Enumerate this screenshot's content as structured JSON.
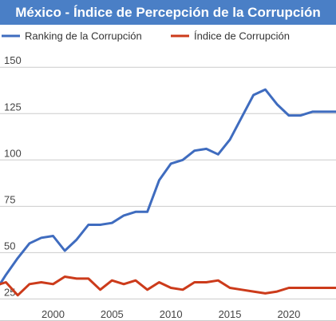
{
  "banner": {
    "title": "México - Índice de Percepción de la Corrupción"
  },
  "chart_data": {
    "type": "line",
    "title": "México - Índice de Percepción de la Corrupción",
    "xlabel": "",
    "ylabel": "",
    "xlim": [
      1995.5,
      2024
    ],
    "ylim": [
      20,
      160
    ],
    "x_ticks": [
      2000,
      2005,
      2010,
      2015,
      2020
    ],
    "y_ticks": [
      25,
      50,
      75,
      100,
      125,
      150
    ],
    "grid": true,
    "legend": "top",
    "colors": {
      "ranking": "#3f6cbf",
      "indice": "#cc3b1b"
    },
    "x": [
      1995.5,
      1996,
      1997,
      1998,
      1999,
      2000,
      2001,
      2002,
      2003,
      2004,
      2005,
      2006,
      2007,
      2008,
      2009,
      2010,
      2011,
      2012,
      2013,
      2014,
      2015,
      2016,
      2017,
      2018,
      2019,
      2020,
      2021,
      2022,
      2023,
      2024
    ],
    "series": [
      {
        "name": "Ranking de la Corrupción",
        "values": [
          33,
          38,
          47,
          55,
          58,
          59,
          51,
          57,
          65,
          65,
          66,
          70,
          72,
          72,
          89,
          98,
          100,
          105,
          106,
          103,
          111,
          123,
          135,
          138,
          130,
          124,
          124,
          126,
          126,
          126
        ]
      },
      {
        "name": "Índice de Corrupción",
        "values": [
          33,
          34,
          27,
          33,
          34,
          33,
          37,
          36,
          36,
          30,
          35,
          33,
          35,
          30,
          34,
          31,
          30,
          34,
          34,
          35,
          31,
          30,
          29,
          28,
          29,
          31,
          31,
          31,
          31,
          31
        ]
      }
    ]
  }
}
